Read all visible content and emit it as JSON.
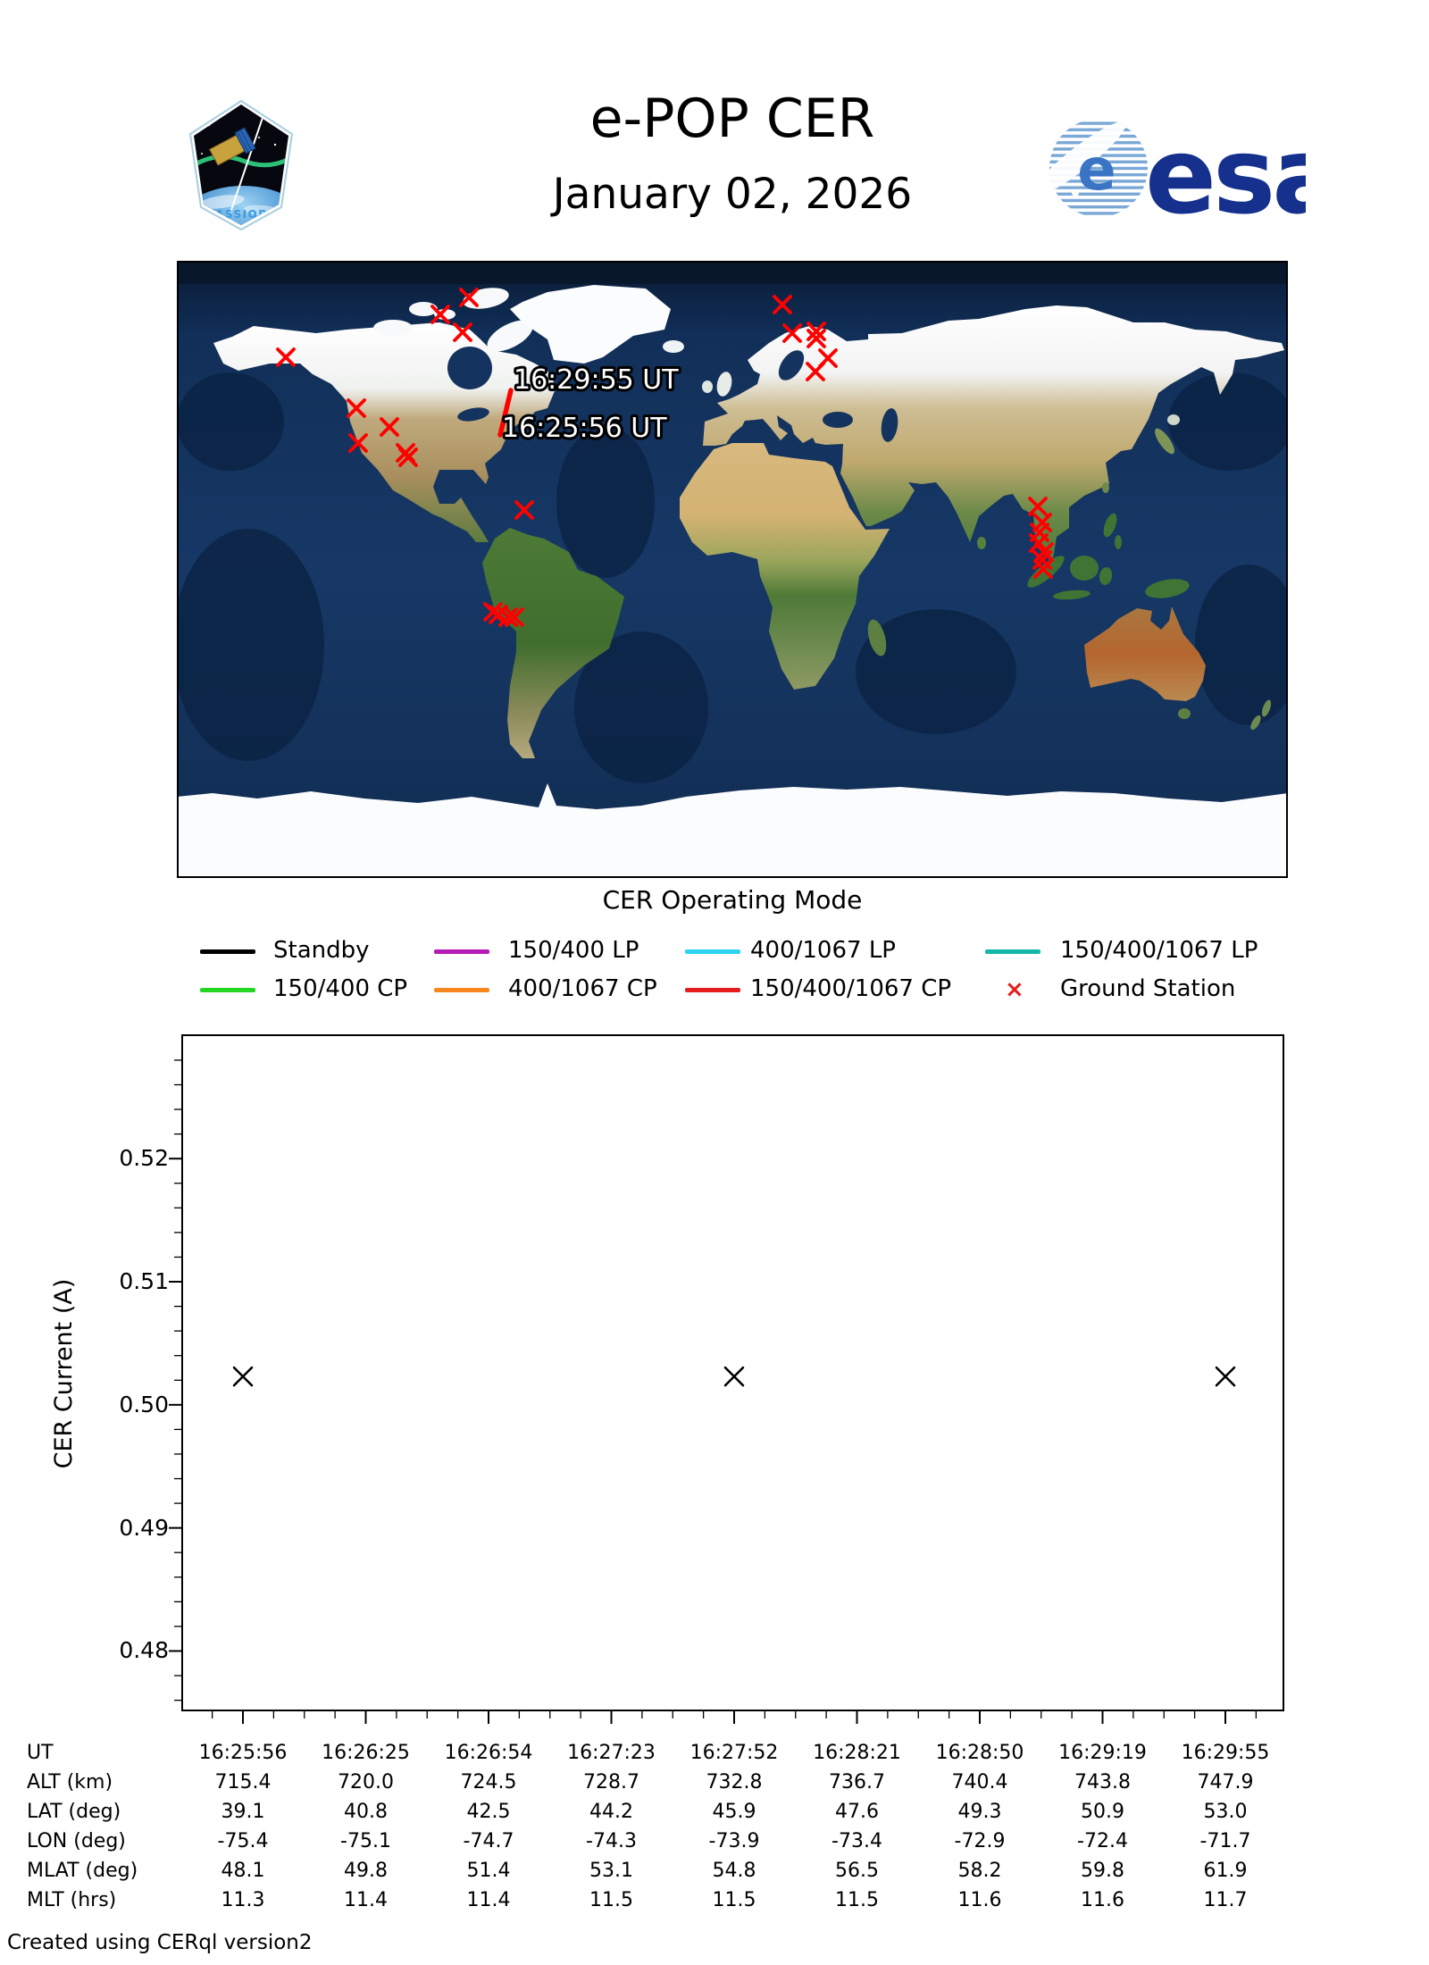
{
  "header": {
    "title": "e-POP CER",
    "date": "January 02, 2026",
    "patch_label": "CASSIOPE",
    "esa_logo_text": "esa"
  },
  "map": {
    "track_start_label": "16:25:56 UT",
    "track_end_label": "16:29:55 UT",
    "track_color": "#ff0000",
    "ground_station_color": "#ff0000",
    "ground_stations": [
      [
        122,
        108
      ],
      [
        201,
        165
      ],
      [
        238,
        186
      ],
      [
        203,
        204
      ],
      [
        256,
        215
      ],
      [
        259,
        220
      ],
      [
        327,
        41
      ],
      [
        295,
        60
      ],
      [
        320,
        80
      ],
      [
        389,
        279
      ],
      [
        354,
        393
      ],
      [
        360,
        396
      ],
      [
        371,
        399
      ],
      [
        378,
        399
      ],
      [
        678,
        49
      ],
      [
        689,
        81
      ],
      [
        716,
        79
      ],
      [
        716,
        87
      ],
      [
        729,
        109
      ],
      [
        715,
        124
      ],
      [
        964,
        275
      ],
      [
        969,
        293
      ],
      [
        966,
        304
      ],
      [
        965,
        316
      ],
      [
        971,
        326
      ],
      [
        969,
        335
      ],
      [
        970,
        345
      ]
    ]
  },
  "legend": {
    "title": "CER Operating Mode",
    "entries": [
      {
        "label": "Standby",
        "color": "#000000",
        "marker": "line"
      },
      {
        "label": "150/400 LP",
        "color": "#b41bb4",
        "marker": "line"
      },
      {
        "label": "400/1067 LP",
        "color": "#2cd3f2",
        "marker": "line"
      },
      {
        "label": "150/400/1067 LP",
        "color": "#14b8a9",
        "marker": "line"
      },
      {
        "label": "150/400 CP",
        "color": "#25d725",
        "marker": "line"
      },
      {
        "label": "400/1067 CP",
        "color": "#f8861f",
        "marker": "line"
      },
      {
        "label": "150/400/1067 CP",
        "color": "#e51d1d",
        "marker": "line"
      },
      {
        "label": "Ground Station",
        "color": "#e51d1d",
        "marker": "x"
      }
    ]
  },
  "chart_data": {
    "type": "scatter",
    "title": "",
    "xlabel": "",
    "ylabel": "CER Current (A)",
    "ylim": [
      0.4751,
      0.5301
    ],
    "ytick_labels": [
      "0.48",
      "0.49",
      "0.50",
      "0.51",
      "0.52"
    ],
    "yticks": [
      0.48,
      0.49,
      0.5,
      0.51,
      0.52
    ],
    "minor_ytick_step": 0.002,
    "x_ticklabels": [
      "16:25:56",
      "16:26:25",
      "16:26:54",
      "16:27:23",
      "16:27:52",
      "16:28:21",
      "16:28:50",
      "16:29:19",
      "16:29:55"
    ],
    "points": [
      {
        "x": "16:25:56",
        "x_index": 0,
        "y": 0.5023
      },
      {
        "x": "16:27:52",
        "x_index": 4,
        "y": 0.5023
      },
      {
        "x": "16:29:55",
        "x_index": 8,
        "y": 0.5023
      }
    ],
    "marker": "x",
    "marker_color": "#000000",
    "grid": false,
    "legend_position": "none"
  },
  "table": {
    "rows": [
      {
        "label": "UT",
        "values": [
          "16:25:56",
          "16:26:25",
          "16:26:54",
          "16:27:23",
          "16:27:52",
          "16:28:21",
          "16:28:50",
          "16:29:19",
          "16:29:55"
        ]
      },
      {
        "label": "ALT (km)",
        "values": [
          "715.4",
          "720.0",
          "724.5",
          "728.7",
          "732.8",
          "736.7",
          "740.4",
          "743.8",
          "747.9"
        ]
      },
      {
        "label": "LAT (deg)",
        "values": [
          "39.1",
          "40.8",
          "42.5",
          "44.2",
          "45.9",
          "47.6",
          "49.3",
          "50.9",
          "53.0"
        ]
      },
      {
        "label": "LON (deg)",
        "values": [
          "-75.4",
          "-75.1",
          "-74.7",
          "-74.3",
          "-73.9",
          "-73.4",
          "-72.9",
          "-72.4",
          "-71.7"
        ]
      },
      {
        "label": "MLAT (deg)",
        "values": [
          "48.1",
          "49.8",
          "51.4",
          "53.1",
          "54.8",
          "56.5",
          "58.2",
          "59.8",
          "61.9"
        ]
      },
      {
        "label": "MLT (hrs)",
        "values": [
          "11.3",
          "11.4",
          "11.4",
          "11.5",
          "11.5",
          "11.5",
          "11.6",
          "11.6",
          "11.7"
        ]
      }
    ]
  },
  "footer": {
    "credit": "Created using CERql version2"
  }
}
